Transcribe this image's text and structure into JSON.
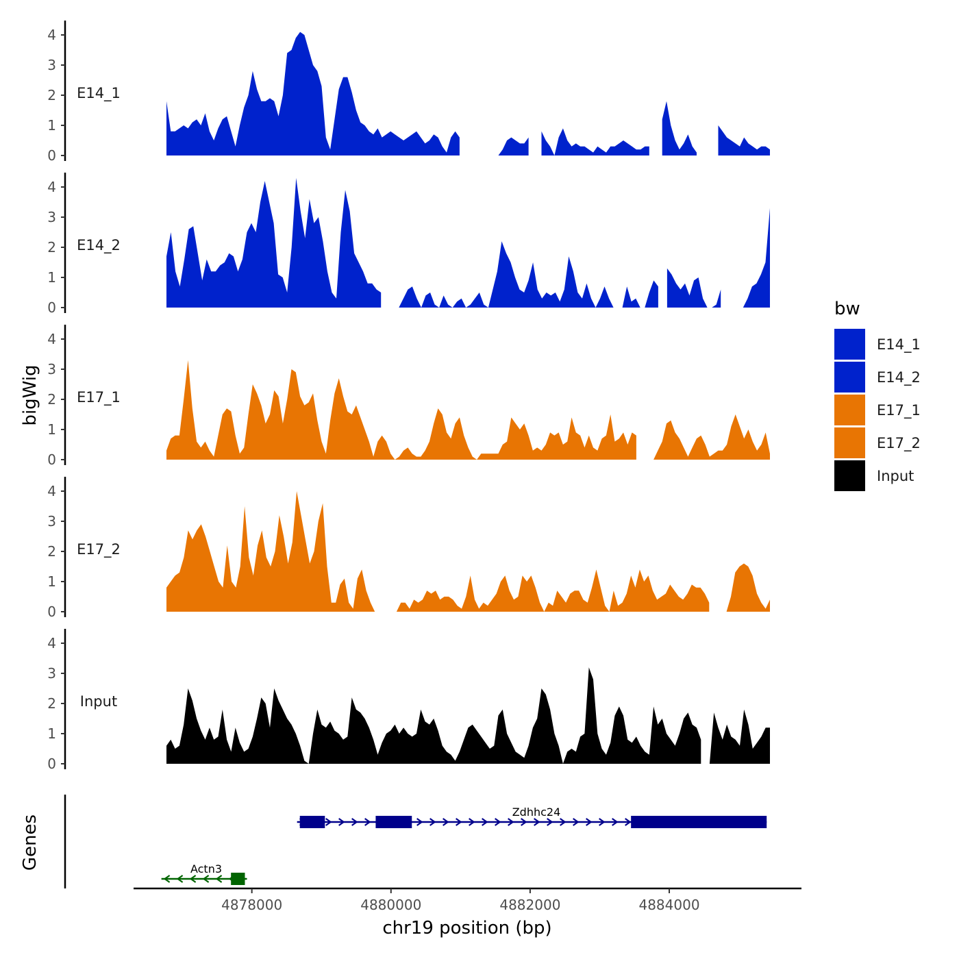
{
  "chart_data": {
    "type": "area",
    "y_axis_title": "bigWig",
    "genes_axis_title": "Genes",
    "x_axis_title": "chr19 position (bp)",
    "x_ticks": [
      4878000,
      4880000,
      4882000,
      4884000
    ],
    "x_tick_labels": [
      "4878000",
      "4880000",
      "4882000",
      "4884000"
    ],
    "xlim": [
      4876300,
      4885900
    ],
    "track_x_range": [
      4876700,
      4885400
    ],
    "ylim": [
      0,
      4.5
    ],
    "y_ticks": [
      0,
      1,
      2,
      3,
      4
    ],
    "y_tick_labels": [
      "0",
      "1",
      "2",
      "3",
      "4"
    ],
    "tracks": [
      {
        "name": "E14_1",
        "color": "#0022cc",
        "values": [
          1.8,
          0.8,
          0.8,
          0.9,
          1.0,
          0.9,
          1.1,
          1.2,
          1.0,
          1.4,
          0.8,
          0.5,
          0.9,
          1.2,
          1.3,
          0.8,
          0.3,
          1.0,
          1.6,
          2.0,
          2.8,
          2.2,
          1.8,
          1.8,
          1.9,
          1.8,
          1.3,
          2.0,
          3.4,
          3.5,
          3.9,
          4.1,
          4.0,
          3.5,
          3.0,
          2.8,
          2.3,
          0.6,
          0.2,
          1.2,
          2.2,
          2.6,
          2.6,
          2.1,
          1.5,
          1.1,
          1.0,
          0.8,
          0.7,
          0.9,
          0.6,
          0.7,
          0.8,
          0.7,
          0.6,
          0.5,
          0.6,
          0.7,
          0.8,
          0.6,
          0.4,
          0.5,
          0.7,
          0.6,
          0.3,
          0.1,
          0.6,
          0.8,
          0.6,
          0.3,
          0.2,
          0.6,
          0.5,
          0.0,
          0.0,
          0.0,
          0.0,
          0.0,
          0.2,
          0.5,
          0.6,
          0.5,
          0.4,
          0.4,
          0.6,
          0.9,
          1.0,
          0.8,
          0.5,
          0.3,
          0.0,
          0.6,
          0.9,
          0.5,
          0.3,
          0.4,
          0.3,
          0.3,
          0.2,
          0.1,
          0.3,
          0.2,
          0.1,
          0.3,
          0.3,
          0.4,
          0.5,
          0.4,
          0.3,
          0.2,
          0.2,
          0.3,
          0.3,
          0.3,
          0.5,
          1.2,
          1.8,
          1.0,
          0.5,
          0.2,
          0.4,
          0.7,
          0.3,
          0.1,
          0.0,
          0.0,
          0.5,
          0.7,
          1.0,
          0.8,
          0.6,
          0.5,
          0.4,
          0.3,
          0.6,
          0.4,
          0.3,
          0.2,
          0.3,
          0.3,
          0.2
        ],
        "breaks": [
          {
            "from": 4880950,
            "to": 4881250
          },
          {
            "from": 4881950,
            "to": 4882100
          },
          {
            "from": 4883700,
            "to": 4883800
          },
          {
            "from": 4884400,
            "to": 4884600
          }
        ]
      },
      {
        "name": "E14_2",
        "color": "#0022cc",
        "values": [
          1.7,
          2.5,
          1.2,
          0.7,
          1.6,
          2.6,
          2.7,
          1.8,
          0.9,
          1.6,
          1.2,
          1.2,
          1.4,
          1.5,
          1.8,
          1.7,
          1.2,
          1.6,
          2.5,
          2.8,
          2.5,
          3.5,
          4.2,
          3.5,
          2.8,
          1.1,
          1.0,
          0.5,
          2.0,
          4.3,
          3.2,
          2.3,
          3.6,
          2.8,
          3.0,
          2.2,
          1.2,
          0.5,
          0.3,
          2.5,
          3.9,
          3.2,
          1.8,
          1.5,
          1.2,
          0.8,
          0.8,
          0.6,
          0.5,
          0.3,
          0.0,
          0.0,
          0.0,
          0.3,
          0.6,
          0.7,
          0.3,
          0.0,
          0.4,
          0.5,
          0.1,
          0.0,
          0.4,
          0.1,
          0.0,
          0.2,
          0.3,
          0.0,
          0.1,
          0.3,
          0.5,
          0.1,
          0.0,
          0.6,
          1.2,
          2.2,
          1.8,
          1.5,
          1.0,
          0.6,
          0.5,
          0.9,
          1.5,
          0.6,
          0.3,
          0.5,
          0.4,
          0.5,
          0.2,
          0.6,
          1.7,
          1.2,
          0.5,
          0.3,
          0.8,
          0.3,
          0.0,
          0.3,
          0.7,
          0.3,
          0.0,
          0.0,
          0.0,
          0.7,
          0.2,
          0.3,
          0.0,
          0.0,
          0.5,
          0.9,
          0.7,
          0.8,
          1.3,
          1.1,
          0.8,
          0.6,
          0.8,
          0.4,
          0.9,
          1.0,
          0.3,
          0.0,
          0.0,
          0.1,
          0.6,
          0.8,
          0.7,
          0.0,
          0.0,
          0.0,
          0.3,
          0.7,
          0.8,
          1.1,
          1.5,
          3.3
        ],
        "breaks": [
          {
            "from": 4879800,
            "to": 4880050
          },
          {
            "from": 4883800,
            "to": 4883900
          },
          {
            "from": 4884700,
            "to": 4884950
          }
        ]
      },
      {
        "name": "E17_1",
        "color": "#e87503",
        "values": [
          0.3,
          0.7,
          0.8,
          0.8,
          2.0,
          3.3,
          1.7,
          0.6,
          0.4,
          0.6,
          0.3,
          0.1,
          0.8,
          1.5,
          1.7,
          1.6,
          0.8,
          0.2,
          0.4,
          1.5,
          2.5,
          2.2,
          1.8,
          1.2,
          1.5,
          2.3,
          2.1,
          1.2,
          2.0,
          3.0,
          2.9,
          2.1,
          1.8,
          1.9,
          2.2,
          1.3,
          0.6,
          0.2,
          1.3,
          2.2,
          2.7,
          2.1,
          1.6,
          1.5,
          1.8,
          1.4,
          1.0,
          0.6,
          0.1,
          0.6,
          0.8,
          0.6,
          0.2,
          0.0,
          0.1,
          0.3,
          0.4,
          0.2,
          0.1,
          0.1,
          0.3,
          0.6,
          1.2,
          1.7,
          1.5,
          0.9,
          0.7,
          1.2,
          1.4,
          0.8,
          0.4,
          0.1,
          0.0,
          0.2,
          0.2,
          0.2,
          0.2,
          0.2,
          0.5,
          0.6,
          1.4,
          1.2,
          1.0,
          1.2,
          0.8,
          0.3,
          0.4,
          0.3,
          0.5,
          0.9,
          0.8,
          0.9,
          0.5,
          0.6,
          1.4,
          0.9,
          0.8,
          0.4,
          0.8,
          0.4,
          0.3,
          0.7,
          0.8,
          1.5,
          0.6,
          0.7,
          0.9,
          0.5,
          0.9,
          0.8,
          0.5,
          0.0,
          0.0,
          0.0,
          0.3,
          0.6,
          1.2,
          1.3,
          0.9,
          0.7,
          0.4,
          0.1,
          0.4,
          0.7,
          0.8,
          0.5,
          0.1,
          0.2,
          0.3,
          0.3,
          0.5,
          1.1,
          1.5,
          1.1,
          0.7,
          1.0,
          0.6,
          0.3,
          0.5,
          0.9,
          0.2
        ],
        "breaks": [
          {
            "from": 4883500,
            "to": 4883700
          }
        ]
      },
      {
        "name": "E17_2",
        "color": "#e87503",
        "values": [
          0.8,
          1.0,
          1.2,
          1.3,
          1.8,
          2.7,
          2.4,
          2.7,
          2.9,
          2.5,
          2.0,
          1.5,
          1.0,
          0.8,
          2.2,
          1.0,
          0.8,
          1.5,
          3.5,
          1.8,
          1.2,
          2.2,
          2.7,
          1.8,
          1.5,
          2.0,
          3.2,
          2.5,
          1.6,
          2.3,
          4.0,
          3.2,
          2.4,
          1.6,
          2.0,
          3.0,
          3.6,
          1.5,
          0.3,
          0.3,
          0.9,
          1.1,
          0.3,
          0.1,
          1.1,
          1.4,
          0.7,
          0.3,
          0.0,
          0.5,
          0.0,
          0.0,
          0.0,
          0.0,
          0.3,
          0.3,
          0.1,
          0.4,
          0.3,
          0.4,
          0.7,
          0.6,
          0.7,
          0.4,
          0.5,
          0.5,
          0.4,
          0.2,
          0.1,
          0.5,
          1.2,
          0.4,
          0.1,
          0.3,
          0.2,
          0.4,
          0.6,
          1.0,
          1.2,
          0.7,
          0.4,
          0.5,
          1.2,
          1.0,
          1.2,
          0.8,
          0.3,
          0.0,
          0.3,
          0.2,
          0.7,
          0.5,
          0.3,
          0.6,
          0.7,
          0.7,
          0.4,
          0.3,
          0.8,
          1.4,
          0.8,
          0.2,
          0.0,
          0.7,
          0.2,
          0.3,
          0.6,
          1.2,
          0.8,
          1.4,
          1.0,
          1.2,
          0.7,
          0.4,
          0.5,
          0.6,
          0.9,
          0.7,
          0.5,
          0.4,
          0.6,
          0.9,
          0.8,
          0.8,
          0.6,
          0.3,
          0.1,
          0.0,
          0.0,
          0.0,
          0.5,
          1.3,
          1.5,
          1.6,
          1.5,
          1.2,
          0.6,
          0.3,
          0.1,
          0.4
        ],
        "breaks": [
          {
            "from": 4879750,
            "to": 4879850
          },
          {
            "from": 4884550,
            "to": 4884750
          }
        ]
      },
      {
        "name": "Input",
        "color": "#000000",
        "values": [
          0.6,
          0.8,
          0.5,
          0.6,
          1.3,
          2.5,
          2.1,
          1.5,
          1.1,
          0.8,
          1.2,
          0.8,
          0.9,
          1.8,
          0.8,
          0.4,
          1.2,
          0.7,
          0.4,
          0.5,
          0.9,
          1.5,
          2.2,
          2.0,
          1.2,
          2.5,
          2.1,
          1.8,
          1.5,
          1.3,
          1.0,
          0.6,
          0.1,
          0.0,
          1.0,
          1.8,
          1.3,
          1.2,
          1.4,
          1.1,
          1.0,
          0.8,
          0.9,
          2.2,
          1.8,
          1.7,
          1.5,
          1.2,
          0.8,
          0.3,
          0.7,
          1.0,
          1.1,
          1.3,
          1.0,
          1.2,
          1.0,
          0.9,
          1.0,
          1.8,
          1.4,
          1.3,
          1.5,
          1.1,
          0.6,
          0.4,
          0.3,
          0.1,
          0.4,
          0.8,
          1.2,
          1.3,
          1.1,
          0.9,
          0.7,
          0.5,
          0.6,
          1.6,
          1.8,
          1.0,
          0.7,
          0.4,
          0.3,
          0.2,
          0.6,
          1.2,
          1.5,
          2.5,
          2.3,
          1.8,
          1.0,
          0.6,
          0.0,
          0.4,
          0.5,
          0.4,
          0.9,
          1.0,
          3.2,
          2.8,
          1.0,
          0.5,
          0.3,
          0.7,
          1.6,
          1.9,
          1.6,
          0.8,
          0.7,
          0.9,
          0.6,
          0.4,
          0.3,
          1.9,
          1.3,
          1.5,
          1.0,
          0.8,
          0.6,
          1.0,
          1.5,
          1.7,
          1.3,
          1.2,
          0.8,
          0.3,
          0.0,
          1.7,
          1.2,
          0.8,
          1.3,
          0.9,
          0.8,
          0.6,
          1.8,
          1.3,
          0.5,
          0.7,
          0.9,
          1.2,
          1.2
        ],
        "breaks": [
          {
            "from": 4884450,
            "to": 4884480
          }
        ]
      }
    ],
    "legend": {
      "title": "bw",
      "position": "right",
      "entries": [
        {
          "label": "E14_1",
          "color": "#0022cc"
        },
        {
          "label": "E14_2",
          "color": "#0022cc"
        },
        {
          "label": "E17_1",
          "color": "#e87503"
        },
        {
          "label": "E17_2",
          "color": "#e87503"
        },
        {
          "label": "Input",
          "color": "#000000"
        }
      ]
    },
    "genes": [
      {
        "name": "Zdhhc24",
        "strand": "+",
        "color": "#00008b",
        "start": 4878650,
        "end": 4885400,
        "exons": [
          [
            4878690,
            4879050
          ],
          [
            4879780,
            4880300
          ],
          [
            4883450,
            4885400
          ]
        ],
        "row": 0
      },
      {
        "name": "Actn3",
        "strand": "-",
        "color": "#006400",
        "start": 4876700,
        "end": 4877930,
        "exons": [
          [
            4877700,
            4877900
          ]
        ],
        "row": 1
      }
    ]
  }
}
